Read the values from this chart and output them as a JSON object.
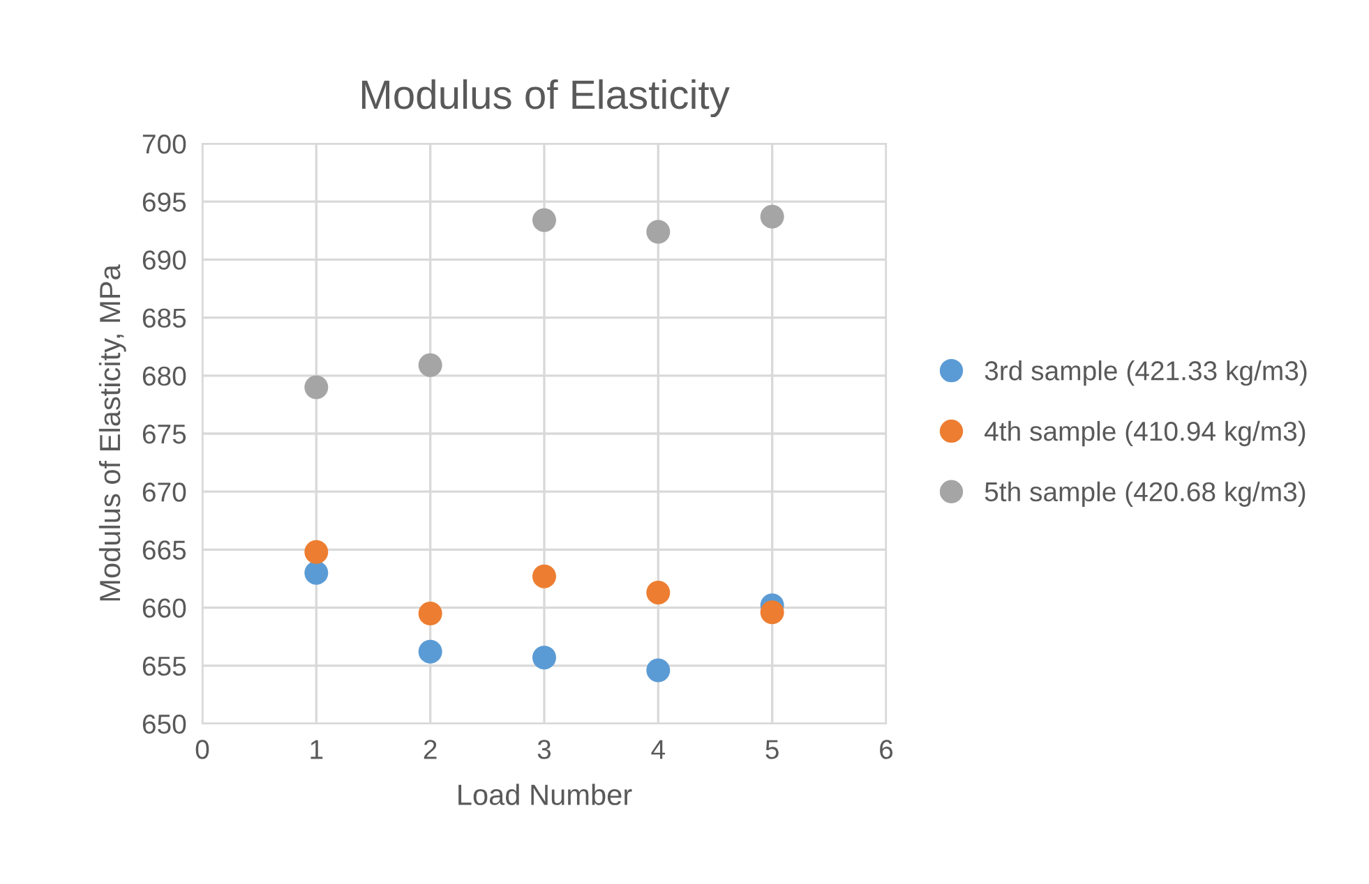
{
  "chart_data": {
    "type": "scatter",
    "title": "Modulus of Elasticity",
    "xlabel": "Load Number",
    "ylabel": "Modulus of Elasticity, MPa",
    "x": [
      1,
      2,
      3,
      4,
      5
    ],
    "series": [
      {
        "name": "3rd sample (421.33 kg/m3)",
        "color": "#5b9bd5",
        "values": [
          663.0,
          656.2,
          655.7,
          654.6,
          660.2
        ]
      },
      {
        "name": "4th sample (410.94 kg/m3)",
        "color": "#ed7d31",
        "values": [
          664.8,
          659.5,
          662.7,
          661.3,
          659.6
        ]
      },
      {
        "name": "5th sample (420.68 kg/m3)",
        "color": "#a5a5a5",
        "values": [
          679.0,
          680.9,
          693.4,
          692.4,
          693.7
        ]
      }
    ],
    "xlim": [
      0,
      6
    ],
    "xticks": [
      0,
      1,
      2,
      3,
      4,
      5,
      6
    ],
    "ylim": [
      650,
      700
    ],
    "yticks": [
      650,
      655,
      660,
      665,
      670,
      675,
      680,
      685,
      690,
      695,
      700
    ],
    "grid": true,
    "legend": "right",
    "marker": "circle"
  }
}
